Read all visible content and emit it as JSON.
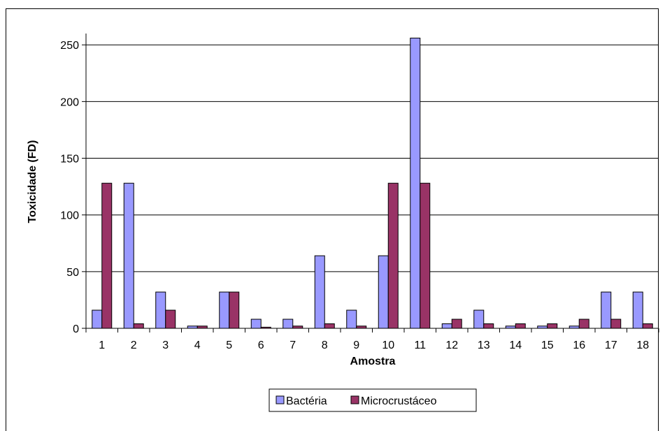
{
  "chart_data": {
    "type": "bar",
    "xlabel": "Amostra",
    "ylabel": "Toxicidade (FD)",
    "categories": [
      "1",
      "2",
      "3",
      "4",
      "5",
      "6",
      "7",
      "8",
      "9",
      "10",
      "11",
      "12",
      "13",
      "14",
      "15",
      "16",
      "17",
      "18"
    ],
    "ylim": [
      0,
      260
    ],
    "yticks": [
      0,
      50,
      100,
      150,
      200,
      250
    ],
    "grid": true,
    "legend_position": "bottom",
    "series": [
      {
        "name": "Bactéria",
        "color": "#9999ff",
        "values": [
          16,
          128,
          32,
          2,
          32,
          8,
          8,
          64,
          16,
          64,
          256,
          4,
          16,
          2,
          2,
          2,
          32,
          32
        ]
      },
      {
        "name": "Microcrustáceo",
        "color": "#993366",
        "values": [
          128,
          4,
          16,
          2,
          32,
          1,
          2,
          4,
          2,
          128,
          128,
          8,
          4,
          4,
          4,
          8,
          8,
          4
        ]
      }
    ]
  }
}
